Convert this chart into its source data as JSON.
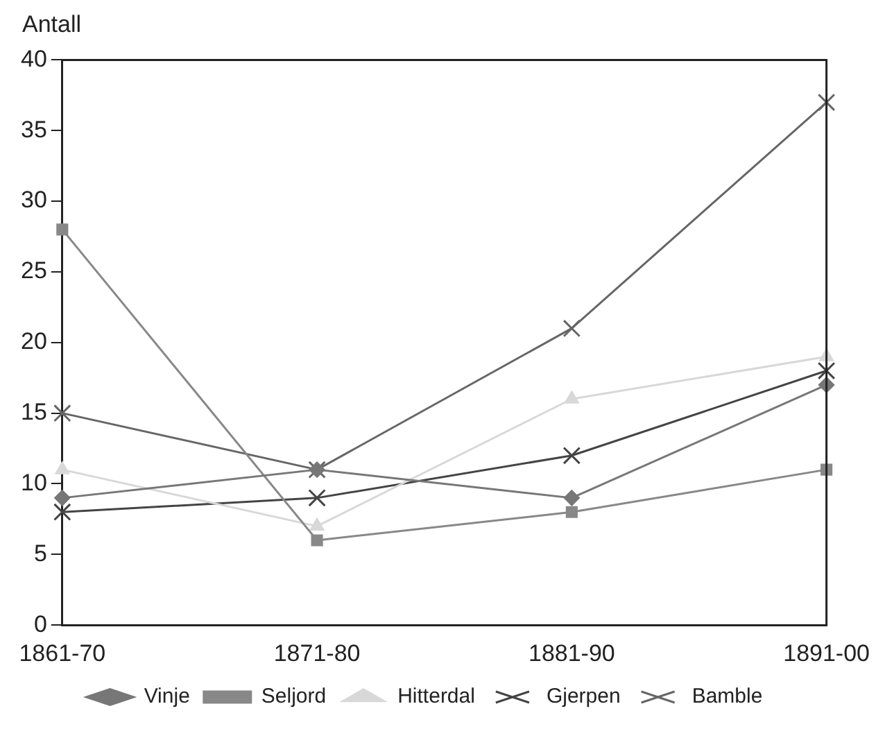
{
  "chart_data": {
    "type": "line",
    "ylabel": "Antall",
    "categories": [
      "1861-70",
      "1871-80",
      "1881-90",
      "1891-00"
    ],
    "series": [
      {
        "name": "Vinje",
        "color": "#777777",
        "marker": "diamond",
        "values": [
          9,
          11,
          9,
          17
        ]
      },
      {
        "name": "Seljord",
        "color": "#888888",
        "marker": "square",
        "values": [
          28,
          6,
          8,
          11
        ]
      },
      {
        "name": "Hitterdal",
        "color": "#d8d8d8",
        "marker": "triangle",
        "values": [
          11,
          7,
          16,
          19
        ]
      },
      {
        "name": "Gjerpen",
        "color": "#444444",
        "marker": "cross",
        "values": [
          8,
          9,
          12,
          18
        ]
      },
      {
        "name": "Bamble",
        "color": "#666666",
        "marker": "cross",
        "values": [
          15,
          11,
          21,
          37
        ]
      }
    ],
    "ylim": [
      0,
      40
    ],
    "yticks": [
      0,
      5,
      10,
      15,
      20,
      25,
      30,
      35,
      40
    ],
    "grid": false,
    "legend": "bottom",
    "line_style": "solid"
  }
}
